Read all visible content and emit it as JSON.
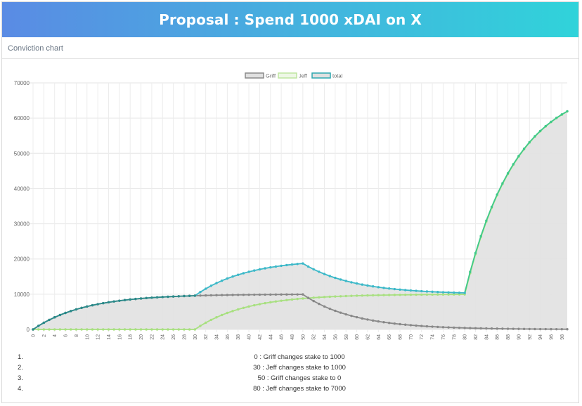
{
  "header": {
    "title": "Proposal : Spend 1000 xDAI on X"
  },
  "section": {
    "label": "Conviction chart"
  },
  "events": [
    {
      "num": "1.",
      "text": "0 : Griff changes stake to 1000"
    },
    {
      "num": "2.",
      "text": "30 : Jeff changes stake to 1000"
    },
    {
      "num": "3.",
      "text": "50 : Griff changes stake to 0"
    },
    {
      "num": "4.",
      "text": "80 : Jeff changes stake to 7000"
    }
  ],
  "colors": {
    "griff": "#888888",
    "jeff": "#a8e080",
    "total_start": "#2a8a8a",
    "total_mid": "#3bb8c8",
    "total_end": "#3fc98a",
    "fill": "#e2e2e2"
  },
  "chart_data": {
    "type": "line",
    "title": "",
    "xlabel": "",
    "ylabel": "",
    "xlim": [
      0,
      99
    ],
    "ylim": [
      0,
      70000
    ],
    "y_ticks": [
      0,
      10000,
      20000,
      30000,
      40000,
      50000,
      60000,
      70000
    ],
    "x_tick_step": 2,
    "grid": true,
    "legend_position": "top",
    "x": [
      0,
      1,
      2,
      3,
      4,
      5,
      6,
      7,
      8,
      9,
      10,
      11,
      12,
      13,
      14,
      15,
      16,
      17,
      18,
      19,
      20,
      21,
      22,
      23,
      24,
      25,
      26,
      27,
      28,
      29,
      30,
      31,
      32,
      33,
      34,
      35,
      36,
      37,
      38,
      39,
      40,
      41,
      42,
      43,
      44,
      45,
      46,
      47,
      48,
      49,
      50,
      51,
      52,
      53,
      54,
      55,
      56,
      57,
      58,
      59,
      60,
      61,
      62,
      63,
      64,
      65,
      66,
      67,
      68,
      69,
      70,
      71,
      72,
      73,
      74,
      75,
      76,
      77,
      78,
      79,
      80,
      81,
      82,
      83,
      84,
      85,
      86,
      87,
      88,
      89,
      90,
      91,
      92,
      93,
      94,
      95,
      96,
      97,
      98,
      99
    ],
    "series": [
      {
        "name": "Griff",
        "values": [
          0,
          1000,
          1900,
          2710,
          3439,
          4095,
          4686,
          5217,
          5695,
          6126,
          6513,
          6862,
          7176,
          7458,
          7712,
          7941,
          8147,
          8332,
          8499,
          8649,
          8784,
          8906,
          9015,
          9114,
          9202,
          9282,
          9354,
          9419,
          9477,
          9529,
          9576,
          9618,
          9657,
          9691,
          9722,
          9750,
          9775,
          9797,
          9818,
          9836,
          9852,
          9867,
          9880,
          9892,
          9903,
          9913,
          9921,
          9929,
          9936,
          9943,
          9948,
          8954,
          8058,
          7253,
          6527,
          5875,
          5287,
          4758,
          4283,
          3854,
          3469,
          3122,
          2810,
          2529,
          2276,
          2048,
          1844,
          1659,
          1493,
          1344,
          1210,
          1089,
          980,
          882,
          794,
          714,
          643,
          578,
          521,
          469,
          422,
          380,
          342,
          307,
          277,
          249,
          224,
          202,
          182,
          163,
          147,
          132,
          119,
          107,
          96,
          87,
          78,
          70,
          63,
          57
        ]
      },
      {
        "name": "Jeff",
        "values": [
          0,
          0,
          0,
          0,
          0,
          0,
          0,
          0,
          0,
          0,
          0,
          0,
          0,
          0,
          0,
          0,
          0,
          0,
          0,
          0,
          0,
          0,
          0,
          0,
          0,
          0,
          0,
          0,
          0,
          0,
          0,
          1000,
          1900,
          2710,
          3439,
          4095,
          4686,
          5217,
          5695,
          6126,
          6513,
          6862,
          7176,
          7458,
          7712,
          7941,
          8147,
          8332,
          8499,
          8649,
          8784,
          8906,
          9015,
          9114,
          9202,
          9282,
          9354,
          9419,
          9477,
          9529,
          9576,
          9618,
          9657,
          9691,
          9722,
          9750,
          9775,
          9797,
          9818,
          9836,
          9852,
          9867,
          9880,
          9892,
          9903,
          9913,
          9921,
          9929,
          9936,
          9943,
          9948,
          15954,
          21358,
          26222,
          30600,
          34540,
          38086,
          41277,
          44150,
          46735,
          49061,
          51155,
          53040,
          54736,
          56262,
          57636,
          58872,
          59985,
          60987,
          61888
        ]
      },
      {
        "name": "total",
        "values": [
          0,
          1000,
          1900,
          2710,
          3439,
          4095,
          4686,
          5217,
          5695,
          6126,
          6513,
          6862,
          7176,
          7458,
          7712,
          7941,
          8147,
          8332,
          8499,
          8649,
          8784,
          8906,
          9015,
          9114,
          9202,
          9282,
          9354,
          9419,
          9477,
          9529,
          9576,
          10618,
          11557,
          12401,
          13161,
          13845,
          14461,
          15014,
          15513,
          15962,
          16365,
          16729,
          17056,
          17350,
          17615,
          17854,
          18068,
          18261,
          18435,
          18592,
          18732,
          17860,
          17073,
          16367,
          15729,
          15157,
          14641,
          14177,
          13760,
          13383,
          13045,
          12740,
          12467,
          12220,
          11998,
          11798,
          11619,
          11456,
          11311,
          11180,
          11062,
          10956,
          10860,
          10774,
          10697,
          10627,
          10564,
          10507,
          10457,
          10412,
          10370,
          16334,
          21700,
          26529,
          30877,
          34789,
          38310,
          41479,
          44332,
          46898,
          49208,
          51287,
          53159,
          54843,
          56358,
          57723,
          58950,
          60055,
          61050,
          61945
        ]
      }
    ]
  }
}
